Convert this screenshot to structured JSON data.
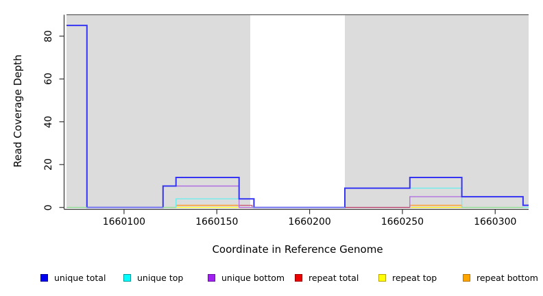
{
  "chart_data": {
    "type": "line",
    "subtype": "step-coverage",
    "title": "",
    "xlabel": "Coordinate in Reference Genome",
    "ylabel": "Read Coverage Depth",
    "xlim": [
      1660069,
      1660318
    ],
    "ylim": [
      0,
      90
    ],
    "grid": false,
    "plot_bg_color": "#DCDCDC",
    "x_ticks": [
      1660100,
      1660150,
      1660200,
      1660250,
      1660300
    ],
    "x_tick_labels": [
      "1660100",
      "1660150",
      "1660200",
      "1660250",
      "1660300"
    ],
    "y_ticks": [
      0,
      20,
      40,
      60,
      80
    ],
    "y_tick_labels": [
      "0",
      "20",
      "40",
      "60",
      "80"
    ],
    "mask_region": {
      "from": 1660168,
      "to": 1660219,
      "color": "#FFFFFF"
    },
    "series": [
      {
        "name": "repeat total",
        "line_color": "#C8506E",
        "width": 1.2,
        "steps": [
          [
            1660069,
            0
          ],
          [
            1660128,
            1
          ],
          [
            1660169,
            0
          ]
        ],
        "x_end": 1660318
      },
      {
        "name": "repeat top",
        "line_color": "#FFFF00",
        "width": 1.2,
        "steps": [
          [
            1660069,
            0
          ]
        ],
        "x_end": 1660318
      },
      {
        "name": "repeat bottom",
        "line_color": "#FFA033",
        "width": 1.5,
        "steps": [
          [
            1660069,
            0
          ],
          [
            1660128,
            1
          ],
          [
            1660162,
            0
          ],
          [
            1660254,
            1
          ],
          [
            1660282,
            0
          ]
        ],
        "x_end": 1660318
      },
      {
        "name": "unique bottom",
        "line_color": "#B06FE0",
        "width": 1.4,
        "steps": [
          [
            1660069,
            0
          ],
          [
            1660121,
            10
          ],
          [
            1660162,
            0
          ],
          [
            1660254,
            5
          ],
          [
            1660315,
            1
          ]
        ],
        "x_end": 1660318
      },
      {
        "name": "unique top",
        "line_color": "#6FEDED",
        "width": 1.4,
        "steps": [
          [
            1660069,
            0
          ],
          [
            1660128,
            4
          ],
          [
            1660170,
            0
          ],
          [
            1660219,
            9
          ],
          [
            1660282,
            0
          ]
        ],
        "x_end": 1660318
      },
      {
        "name": "unique total",
        "line_color": "#3434F2",
        "width": 2,
        "steps": [
          [
            1660069,
            85
          ],
          [
            1660080,
            0
          ],
          [
            1660121,
            10
          ],
          [
            1660128,
            14
          ],
          [
            1660162,
            4
          ],
          [
            1660170,
            0
          ],
          [
            1660219,
            9
          ],
          [
            1660254,
            14
          ],
          [
            1660282,
            5
          ],
          [
            1660315,
            1
          ]
        ],
        "x_end": 1660318
      }
    ],
    "baseline_segments": [
      {
        "from": 1660069,
        "to": 1660080,
        "color": "#8FD98F"
      },
      {
        "from": 1660080,
        "to": 1660121,
        "color": "#8585EE"
      },
      {
        "from": 1660121,
        "to": 1660128,
        "color": "#8FD98F"
      },
      {
        "from": 1660169,
        "to": 1660219,
        "color": "#8585EE"
      },
      {
        "from": 1660219,
        "to": 1660254,
        "color": "#B5446A"
      },
      {
        "from": 1660282,
        "to": 1660315,
        "color": "#8FD98F"
      }
    ],
    "legend_position": "bottom"
  },
  "legend": {
    "items": [
      {
        "label": "unique total",
        "fill": "#0000EE",
        "border": "#000099"
      },
      {
        "label": "unique top",
        "fill": "#00FFFF",
        "border": "#009999"
      },
      {
        "label": "unique bottom",
        "fill": "#A020F0",
        "border": "#6A10A0"
      },
      {
        "label": "repeat total",
        "fill": "#EE0000",
        "border": "#990000"
      },
      {
        "label": "repeat top",
        "fill": "#FFFF00",
        "border": "#B8A300"
      },
      {
        "label": "repeat bottom",
        "fill": "#FFA500",
        "border": "#B87400"
      }
    ]
  }
}
